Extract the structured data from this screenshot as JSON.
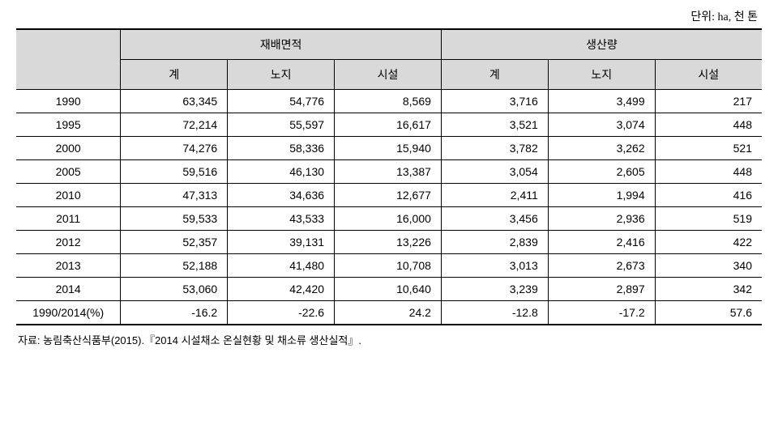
{
  "unit_label": "단위: ha, 천 톤",
  "headers": {
    "group1": "재배면적",
    "group2": "생산량",
    "sub_total": "계",
    "sub_outdoor": "노지",
    "sub_facility": "시설"
  },
  "rows": [
    {
      "year": "1990",
      "area_total": "63,345",
      "area_outdoor": "54,776",
      "area_facility": "8,569",
      "prod_total": "3,716",
      "prod_outdoor": "3,499",
      "prod_facility": "217"
    },
    {
      "year": "1995",
      "area_total": "72,214",
      "area_outdoor": "55,597",
      "area_facility": "16,617",
      "prod_total": "3,521",
      "prod_outdoor": "3,074",
      "prod_facility": "448"
    },
    {
      "year": "2000",
      "area_total": "74,276",
      "area_outdoor": "58,336",
      "area_facility": "15,940",
      "prod_total": "3,782",
      "prod_outdoor": "3,262",
      "prod_facility": "521"
    },
    {
      "year": "2005",
      "area_total": "59,516",
      "area_outdoor": "46,130",
      "area_facility": "13,387",
      "prod_total": "3,054",
      "prod_outdoor": "2,605",
      "prod_facility": "448"
    },
    {
      "year": "2010",
      "area_total": "47,313",
      "area_outdoor": "34,636",
      "area_facility": "12,677",
      "prod_total": "2,411",
      "prod_outdoor": "1,994",
      "prod_facility": "416"
    },
    {
      "year": "2011",
      "area_total": "59,533",
      "area_outdoor": "43,533",
      "area_facility": "16,000",
      "prod_total": "3,456",
      "prod_outdoor": "2,936",
      "prod_facility": "519"
    },
    {
      "year": "2012",
      "area_total": "52,357",
      "area_outdoor": "39,131",
      "area_facility": "13,226",
      "prod_total": "2,839",
      "prod_outdoor": "2,416",
      "prod_facility": "422"
    },
    {
      "year": "2013",
      "area_total": "52,188",
      "area_outdoor": "41,480",
      "area_facility": "10,708",
      "prod_total": "3,013",
      "prod_outdoor": "2,673",
      "prod_facility": "340"
    },
    {
      "year": "2014",
      "area_total": "53,060",
      "area_outdoor": "42,420",
      "area_facility": "10,640",
      "prod_total": "3,239",
      "prod_outdoor": "2,897",
      "prod_facility": "342"
    },
    {
      "year": "1990/2014(%)",
      "area_total": "-16.2",
      "area_outdoor": "-22.6",
      "area_facility": "24.2",
      "prod_total": "-12.8",
      "prod_outdoor": "-17.2",
      "prod_facility": "57.6"
    }
  ],
  "source": "자료: 농림축산식품부(2015).『2014 시설채소 온실현황 및 채소류 생산실적』.",
  "col_widths": {
    "year": "14%",
    "data": "14.33%"
  }
}
